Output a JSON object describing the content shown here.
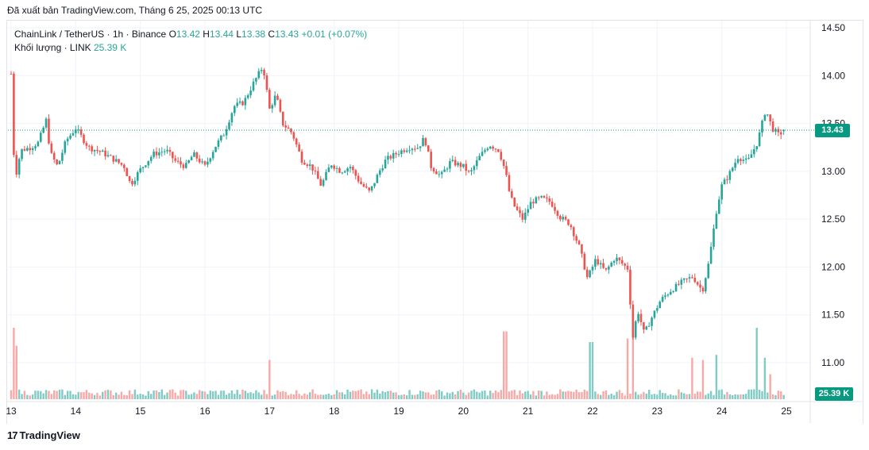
{
  "header": {
    "published": "Đã xuất bản TradingView.com, Tháng 6 25, 2025 00:13 UTC"
  },
  "legend": {
    "symbol": "ChainLink / TetherUS · 1h · Binance",
    "o_label": "O",
    "o_value": "13.42",
    "h_label": "H",
    "h_value": "13.44",
    "l_label": "L",
    "l_value": "13.38",
    "c_label": "C",
    "c_value": "13.43",
    "change": "+0.01 (+0.07%)",
    "volume_label": "Khối lượng · LINK",
    "volume_value": "25.39 K"
  },
  "badges": {
    "last_price": "13.43",
    "last_volume": "25.39 K"
  },
  "footer": {
    "logo_text": "TradingView"
  },
  "colors": {
    "up": "#26a69a",
    "down": "#ef5350",
    "volume_up": "#80cbc4",
    "volume_down": "#f7a9a7",
    "badge": "#089981",
    "grid": "#f0f3fa"
  },
  "chart_data": {
    "type": "candlestick",
    "title": "ChainLink / TetherUS · 1h · Binance",
    "y_ticks": [
      "14.50",
      "14.00",
      "13.50",
      "13.00",
      "12.50",
      "12.00",
      "11.50",
      "11.00"
    ],
    "ylim": [
      10.8,
      14.58
    ],
    "x_ticks": [
      "13",
      "14",
      "15",
      "16",
      "17",
      "18",
      "19",
      "20",
      "21",
      "22",
      "23",
      "24",
      "25"
    ],
    "x_range_days": [
      13,
      25
    ],
    "last_price": 13.43,
    "grid": true,
    "close_path": [
      [
        13.0,
        14.02
      ],
      [
        13.03,
        13.25
      ],
      [
        13.08,
        12.98
      ],
      [
        13.15,
        13.22
      ],
      [
        13.3,
        13.25
      ],
      [
        13.42,
        13.3
      ],
      [
        13.55,
        13.55
      ],
      [
        13.6,
        13.2
      ],
      [
        13.72,
        13.05
      ],
      [
        13.85,
        13.32
      ],
      [
        14.0,
        13.45
      ],
      [
        14.2,
        13.25
      ],
      [
        14.4,
        13.2
      ],
      [
        14.6,
        13.12
      ],
      [
        14.75,
        13.05
      ],
      [
        14.85,
        12.86
      ],
      [
        15.0,
        13.02
      ],
      [
        15.2,
        13.18
      ],
      [
        15.4,
        13.22
      ],
      [
        15.55,
        13.1
      ],
      [
        15.7,
        13.05
      ],
      [
        15.82,
        13.18
      ],
      [
        16.0,
        13.05
      ],
      [
        16.15,
        13.25
      ],
      [
        16.3,
        13.4
      ],
      [
        16.45,
        13.68
      ],
      [
        16.6,
        13.72
      ],
      [
        16.75,
        13.92
      ],
      [
        16.9,
        14.1
      ],
      [
        17.0,
        13.65
      ],
      [
        17.1,
        13.8
      ],
      [
        17.2,
        13.5
      ],
      [
        17.35,
        13.4
      ],
      [
        17.5,
        13.12
      ],
      [
        17.65,
        13.05
      ],
      [
        17.8,
        12.85
      ],
      [
        17.95,
        13.08
      ],
      [
        18.1,
        13.0
      ],
      [
        18.25,
        13.05
      ],
      [
        18.4,
        12.88
      ],
      [
        18.55,
        12.78
      ],
      [
        18.7,
        13.0
      ],
      [
        18.8,
        13.12
      ],
      [
        19.0,
        13.2
      ],
      [
        19.15,
        13.25
      ],
      [
        19.3,
        13.25
      ],
      [
        19.4,
        13.35
      ],
      [
        19.5,
        13.05
      ],
      [
        19.65,
        12.95
      ],
      [
        19.8,
        13.1
      ],
      [
        20.0,
        13.05
      ],
      [
        20.1,
        12.97
      ],
      [
        20.25,
        13.15
      ],
      [
        20.4,
        13.28
      ],
      [
        20.55,
        13.22
      ],
      [
        20.65,
        13.0
      ],
      [
        20.72,
        12.75
      ],
      [
        20.8,
        12.62
      ],
      [
        20.92,
        12.5
      ],
      [
        21.05,
        12.68
      ],
      [
        21.2,
        12.72
      ],
      [
        21.35,
        12.68
      ],
      [
        21.5,
        12.52
      ],
      [
        21.65,
        12.45
      ],
      [
        21.8,
        12.2
      ],
      [
        21.92,
        11.88
      ],
      [
        22.05,
        12.08
      ],
      [
        22.2,
        11.95
      ],
      [
        22.35,
        12.1
      ],
      [
        22.55,
        11.98
      ],
      [
        22.62,
        11.25
      ],
      [
        22.7,
        11.55
      ],
      [
        22.8,
        11.3
      ],
      [
        22.9,
        11.45
      ],
      [
        23.05,
        11.65
      ],
      [
        23.2,
        11.75
      ],
      [
        23.4,
        11.85
      ],
      [
        23.55,
        11.9
      ],
      [
        23.7,
        11.75
      ],
      [
        23.8,
        12.05
      ],
      [
        23.92,
        12.6
      ],
      [
        24.0,
        12.85
      ],
      [
        24.1,
        12.95
      ],
      [
        24.25,
        13.15
      ],
      [
        24.4,
        13.1
      ],
      [
        24.55,
        13.3
      ],
      [
        24.68,
        13.65
      ],
      [
        24.78,
        13.45
      ],
      [
        24.88,
        13.38
      ],
      [
        24.97,
        13.43
      ]
    ],
    "volume_spikes": [
      [
        13.04,
        1.0
      ],
      [
        13.08,
        0.75
      ],
      [
        17.0,
        0.55
      ],
      [
        20.65,
        0.95
      ],
      [
        21.98,
        0.8
      ],
      [
        22.55,
        0.85
      ],
      [
        22.62,
        1.0
      ],
      [
        23.55,
        0.58
      ],
      [
        23.7,
        0.55
      ],
      [
        23.92,
        0.62
      ],
      [
        24.55,
        1.0
      ],
      [
        24.68,
        0.58
      ],
      [
        24.75,
        0.35
      ]
    ]
  }
}
